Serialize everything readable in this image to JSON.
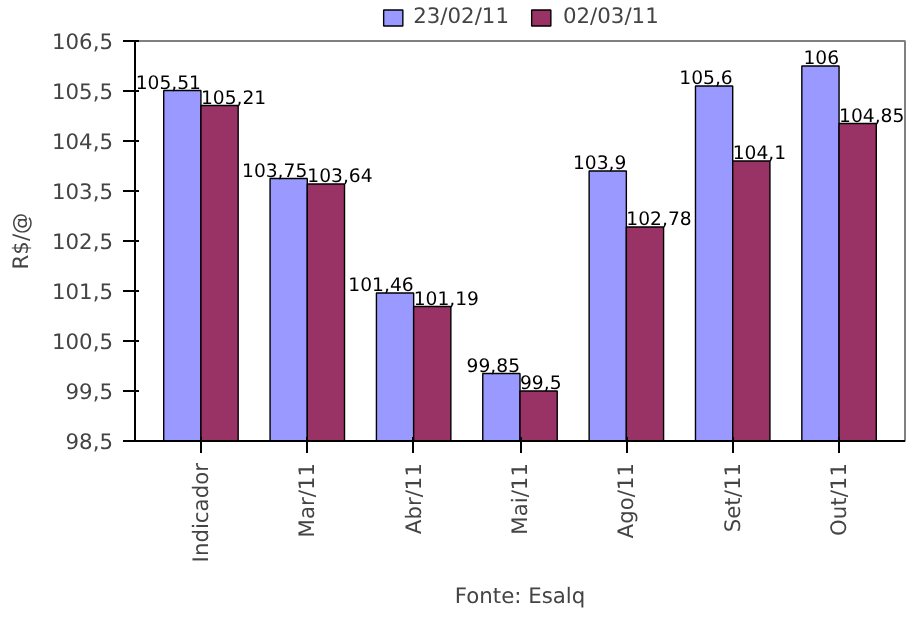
{
  "chart_data": {
    "type": "bar",
    "ylabel": "R$/@",
    "categories": [
      "Indicador",
      "Mar/11",
      "Abr/11",
      "Mai/11",
      "Ago/11",
      "Set/11",
      "Out/11"
    ],
    "series": [
      {
        "name": "23/02/11",
        "color": "#9999ff",
        "values": [
          105.51,
          103.75,
          101.46,
          99.85,
          103.9,
          105.6,
          106
        ],
        "value_labels": [
          "105,51",
          "103,75",
          "101,46",
          "99,85",
          "103,9",
          "105,6",
          "106"
        ]
      },
      {
        "name": "02/03/11",
        "color": "#993366",
        "values": [
          105.21,
          103.64,
          101.19,
          99.5,
          102.78,
          104.1,
          104.85
        ],
        "value_labels": [
          "105,21",
          "103,64",
          "101,19",
          "99,5",
          "102,78",
          "104,1",
          "104,85"
        ]
      }
    ],
    "ylim": [
      98.5,
      106.5
    ],
    "yticks": [
      {
        "value": 98.5,
        "label": "98,5"
      },
      {
        "value": 99.5,
        "label": "99,5"
      },
      {
        "value": 100.5,
        "label": "100,5"
      },
      {
        "value": 101.5,
        "label": "101,5"
      },
      {
        "value": 102.5,
        "label": "102,5"
      },
      {
        "value": 103.5,
        "label": "103,5"
      },
      {
        "value": 104.5,
        "label": "104,5"
      },
      {
        "value": 105.5,
        "label": "105,5"
      },
      {
        "value": 106.5,
        "label": "106,5"
      }
    ],
    "legend": "top",
    "grid": false,
    "annotations": [
      "Fonte: Esalq"
    ]
  }
}
